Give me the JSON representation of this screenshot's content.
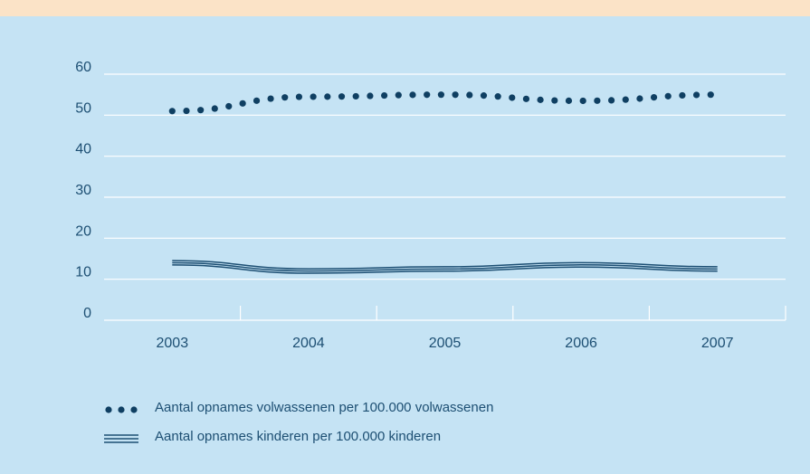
{
  "chart_data": {
    "type": "line",
    "categories": [
      "2003",
      "2004",
      "2005",
      "2006",
      "2007"
    ],
    "yticks": [
      "0",
      "10",
      "20",
      "30",
      "40",
      "50",
      "60"
    ],
    "ylim": [
      0,
      60
    ],
    "grid": true,
    "legend_position": "bottom-left",
    "series": [
      {
        "name": "Aantal opnames volwassenen per 100.000 volwassenen",
        "style": "dotted",
        "color": "#0f3f62",
        "values": [
          51,
          54.5,
          55,
          53.5,
          55
        ]
      },
      {
        "name": "Aantal opnames kinderen per 100.000 kinderen",
        "style": "double-line",
        "color": "#1d4f73",
        "values": [
          14,
          12,
          12.5,
          13.5,
          12.5
        ]
      }
    ]
  },
  "colors": {
    "background": "#c5e3f4",
    "top_band": "#fbe3c7",
    "grid": "#ffffff",
    "text": "#1d4f73"
  }
}
